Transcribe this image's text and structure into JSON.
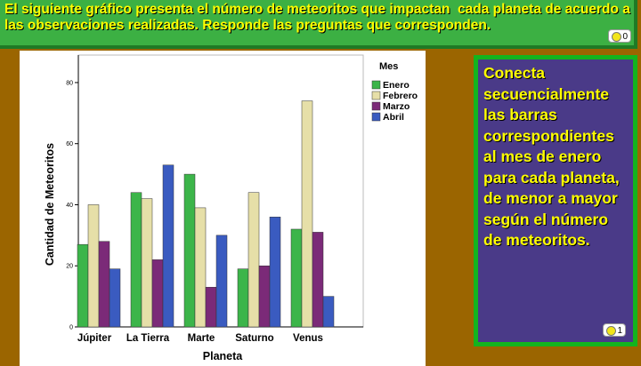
{
  "header": {
    "text": "El siguiente gráfico presenta el número de meteoritos que impactan  cada planeta de acuerdo a las observaciones realizadas. Responde las preguntas que corresponden."
  },
  "chart_data": {
    "type": "bar",
    "y_label": "Cantidad de Meteoritos",
    "x_label": "Planeta",
    "legend_title": "Mes",
    "categories": [
      "Júpiter",
      "La Tierra",
      "Marte",
      "Saturno",
      "Venus"
    ],
    "series": [
      {
        "name": "Enero",
        "color": "#3cb54a",
        "values": [
          27,
          44,
          50,
          19,
          32
        ]
      },
      {
        "name": "Febrero",
        "color": "#e6dfa8",
        "values": [
          40,
          42,
          39,
          44,
          74
        ]
      },
      {
        "name": "Marzo",
        "color": "#7b2a78",
        "values": [
          28,
          22,
          13,
          20,
          31
        ]
      },
      {
        "name": "Abril",
        "color": "#3a5bc0",
        "values": [
          19,
          53,
          30,
          36,
          10
        ]
      }
    ],
    "ylim": [
      0,
      89
    ],
    "yticks": [
      0,
      20,
      40,
      60,
      80
    ]
  },
  "instruction": {
    "text": "Conecta secuencialmente las barras correspondientes al mes de enero para cada planeta, de menor a mayor según el número de meteoritos."
  },
  "badges": [
    0,
    1
  ]
}
